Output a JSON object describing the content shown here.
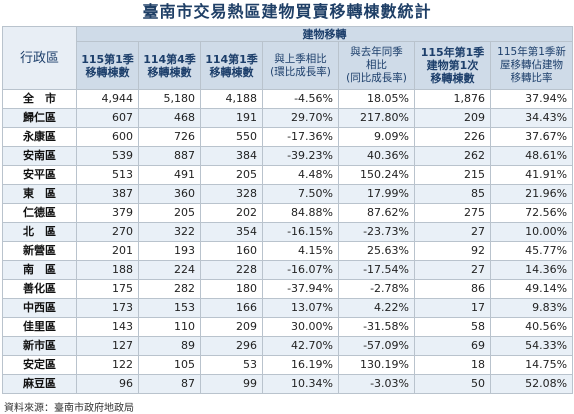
{
  "title": "臺南市交易熱區建物買賣移轉棟數統計",
  "header": {
    "district": "行政區",
    "group": "建物移轉",
    "cols": [
      "115第1季\n移轉棟數",
      "114第4季\n移轉棟數",
      "114第1季\n移轉棟數",
      "與上季相比\n(環比成長率)",
      "與去年同季\n相比\n(同比成長率)",
      "115年第1季\n建物第1次\n移轉棟數",
      "115年第1季新\n屋移轉佔建物\n移轉比率"
    ]
  },
  "rows": [
    {
      "district": "全　市",
      "q1_115": "4,944",
      "q4_114": "5,180",
      "q1_114": "4,188",
      "qoq": "-4.56%",
      "yoy": "18.05%",
      "first": "1,876",
      "ratio": "37.94%"
    },
    {
      "district": "歸仁區",
      "q1_115": "607",
      "q4_114": "468",
      "q1_114": "191",
      "qoq": "29.70%",
      "yoy": "217.80%",
      "first": "209",
      "ratio": "34.43%"
    },
    {
      "district": "永康區",
      "q1_115": "600",
      "q4_114": "726",
      "q1_114": "550",
      "qoq": "-17.36%",
      "yoy": "9.09%",
      "first": "226",
      "ratio": "37.67%"
    },
    {
      "district": "安南區",
      "q1_115": "539",
      "q4_114": "887",
      "q1_114": "384",
      "qoq": "-39.23%",
      "yoy": "40.36%",
      "first": "262",
      "ratio": "48.61%"
    },
    {
      "district": "安平區",
      "q1_115": "513",
      "q4_114": "491",
      "q1_114": "205",
      "qoq": "4.48%",
      "yoy": "150.24%",
      "first": "215",
      "ratio": "41.91%"
    },
    {
      "district": "東　區",
      "q1_115": "387",
      "q4_114": "360",
      "q1_114": "328",
      "qoq": "7.50%",
      "yoy": "17.99%",
      "first": "85",
      "ratio": "21.96%"
    },
    {
      "district": "仁德區",
      "q1_115": "379",
      "q4_114": "205",
      "q1_114": "202",
      "qoq": "84.88%",
      "yoy": "87.62%",
      "first": "275",
      "ratio": "72.56%"
    },
    {
      "district": "北　區",
      "q1_115": "270",
      "q4_114": "322",
      "q1_114": "354",
      "qoq": "-16.15%",
      "yoy": "-23.73%",
      "first": "27",
      "ratio": "10.00%"
    },
    {
      "district": "新營區",
      "q1_115": "201",
      "q4_114": "193",
      "q1_114": "160",
      "qoq": "4.15%",
      "yoy": "25.63%",
      "first": "92",
      "ratio": "45.77%"
    },
    {
      "district": "南　區",
      "q1_115": "188",
      "q4_114": "224",
      "q1_114": "228",
      "qoq": "-16.07%",
      "yoy": "-17.54%",
      "first": "27",
      "ratio": "14.36%"
    },
    {
      "district": "善化區",
      "q1_115": "175",
      "q4_114": "282",
      "q1_114": "180",
      "qoq": "-37.94%",
      "yoy": "-2.78%",
      "first": "86",
      "ratio": "49.14%"
    },
    {
      "district": "中西區",
      "q1_115": "173",
      "q4_114": "153",
      "q1_114": "166",
      "qoq": "13.07%",
      "yoy": "4.22%",
      "first": "17",
      "ratio": "9.83%"
    },
    {
      "district": "佳里區",
      "q1_115": "143",
      "q4_114": "110",
      "q1_114": "209",
      "qoq": "30.00%",
      "yoy": "-31.58%",
      "first": "58",
      "ratio": "40.56%"
    },
    {
      "district": "新市區",
      "q1_115": "127",
      "q4_114": "89",
      "q1_114": "296",
      "qoq": "42.70%",
      "yoy": "-57.09%",
      "first": "69",
      "ratio": "54.33%"
    },
    {
      "district": "安定區",
      "q1_115": "122",
      "q4_114": "105",
      "q1_114": "53",
      "qoq": "16.19%",
      "yoy": "130.19%",
      "first": "18",
      "ratio": "14.75%"
    },
    {
      "district": "麻豆區",
      "q1_115": "96",
      "q4_114": "87",
      "q1_114": "99",
      "qoq": "10.34%",
      "yoy": "-3.03%",
      "first": "50",
      "ratio": "52.08%"
    }
  ],
  "source": "資料來源：臺南市政府地政局"
}
